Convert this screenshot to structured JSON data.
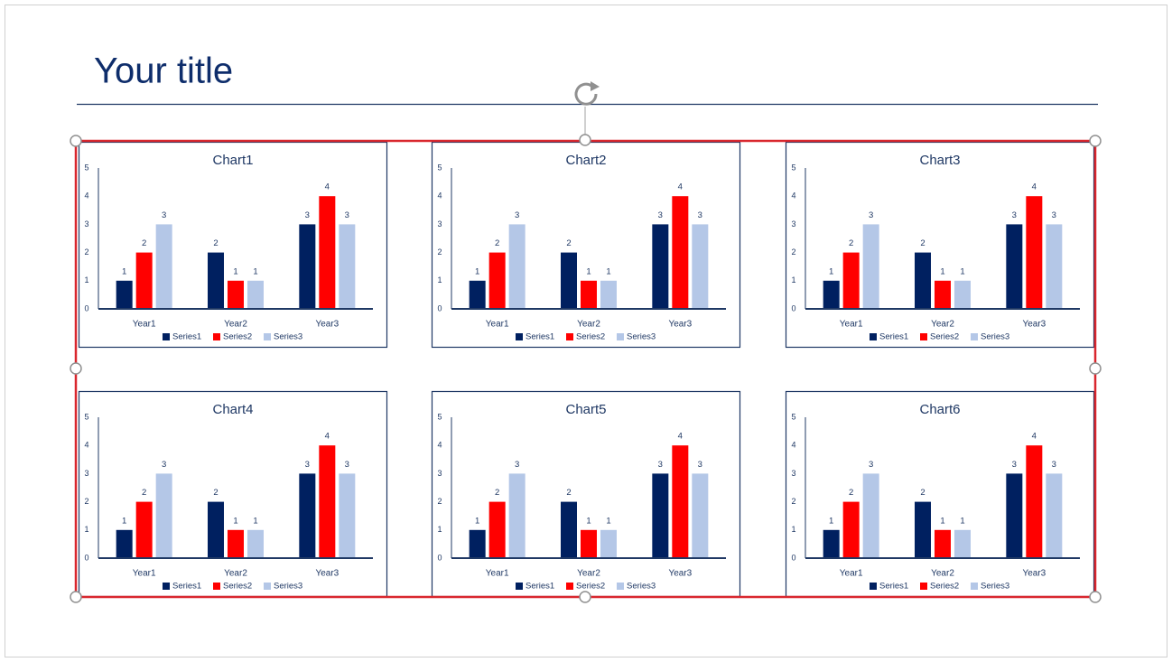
{
  "title": "Your title",
  "chart_data": [
    {
      "type": "bar",
      "title": "Chart1",
      "categories": [
        "Year1",
        "Year2",
        "Year3"
      ],
      "series": [
        {
          "name": "Series1",
          "color": "#002060",
          "values": [
            1,
            2,
            3
          ]
        },
        {
          "name": "Series2",
          "color": "#ff0000",
          "values": [
            2,
            1,
            4
          ]
        },
        {
          "name": "Series3",
          "color": "#b4c7e7",
          "values": [
            3,
            1,
            3
          ]
        }
      ],
      "ylim": [
        0,
        5
      ],
      "yticks": [
        0,
        1,
        2,
        3,
        4,
        5
      ],
      "data_labels": true,
      "legend": "bottom"
    },
    {
      "type": "bar",
      "title": "Chart2",
      "categories": [
        "Year1",
        "Year2",
        "Year3"
      ],
      "series": [
        {
          "name": "Series1",
          "color": "#002060",
          "values": [
            1,
            2,
            3
          ]
        },
        {
          "name": "Series2",
          "color": "#ff0000",
          "values": [
            2,
            1,
            4
          ]
        },
        {
          "name": "Series3",
          "color": "#b4c7e7",
          "values": [
            3,
            1,
            3
          ]
        }
      ],
      "ylim": [
        0,
        5
      ],
      "yticks": [
        0,
        1,
        2,
        3,
        4,
        5
      ],
      "data_labels": true,
      "legend": "bottom"
    },
    {
      "type": "bar",
      "title": "Chart3",
      "categories": [
        "Year1",
        "Year2",
        "Year3"
      ],
      "series": [
        {
          "name": "Series1",
          "color": "#002060",
          "values": [
            1,
            2,
            3
          ]
        },
        {
          "name": "Series2",
          "color": "#ff0000",
          "values": [
            2,
            1,
            4
          ]
        },
        {
          "name": "Series3",
          "color": "#b4c7e7",
          "values": [
            3,
            1,
            3
          ]
        }
      ],
      "ylim": [
        0,
        5
      ],
      "yticks": [
        0,
        1,
        2,
        3,
        4,
        5
      ],
      "data_labels": true,
      "legend": "bottom"
    },
    {
      "type": "bar",
      "title": "Chart4",
      "categories": [
        "Year1",
        "Year2",
        "Year3"
      ],
      "series": [
        {
          "name": "Series1",
          "color": "#002060",
          "values": [
            1,
            2,
            3
          ]
        },
        {
          "name": "Series2",
          "color": "#ff0000",
          "values": [
            2,
            1,
            4
          ]
        },
        {
          "name": "Series3",
          "color": "#b4c7e7",
          "values": [
            3,
            1,
            3
          ]
        }
      ],
      "ylim": [
        0,
        5
      ],
      "yticks": [
        0,
        1,
        2,
        3,
        4,
        5
      ],
      "data_labels": true,
      "legend": "bottom"
    },
    {
      "type": "bar",
      "title": "Chart5",
      "categories": [
        "Year1",
        "Year2",
        "Year3"
      ],
      "series": [
        {
          "name": "Series1",
          "color": "#002060",
          "values": [
            1,
            2,
            3
          ]
        },
        {
          "name": "Series2",
          "color": "#ff0000",
          "values": [
            2,
            1,
            4
          ]
        },
        {
          "name": "Series3",
          "color": "#b4c7e7",
          "values": [
            3,
            1,
            3
          ]
        }
      ],
      "ylim": [
        0,
        5
      ],
      "yticks": [
        0,
        1,
        2,
        3,
        4,
        5
      ],
      "data_labels": true,
      "legend": "bottom"
    },
    {
      "type": "bar",
      "title": "Chart6",
      "categories": [
        "Year1",
        "Year2",
        "Year3"
      ],
      "series": [
        {
          "name": "Series1",
          "color": "#002060",
          "values": [
            1,
            2,
            3
          ]
        },
        {
          "name": "Series2",
          "color": "#ff0000",
          "values": [
            2,
            1,
            4
          ]
        },
        {
          "name": "Series3",
          "color": "#b4c7e7",
          "values": [
            3,
            1,
            3
          ]
        }
      ],
      "ylim": [
        0,
        5
      ],
      "yticks": [
        0,
        1,
        2,
        3,
        4,
        5
      ],
      "data_labels": true,
      "legend": "bottom"
    }
  ]
}
